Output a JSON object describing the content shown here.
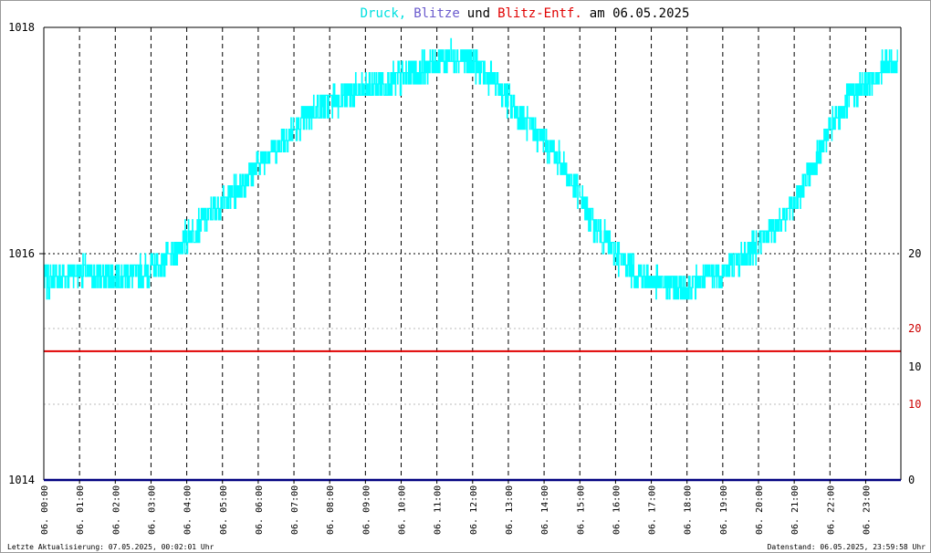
{
  "chart_data": {
    "type": "line",
    "title": {
      "druck": "Druck",
      "comma": ",",
      "blitze": "Blitze",
      "und": "und",
      "entf": "Blitz-Entf.",
      "am": "am 06.05.2025"
    },
    "colors": {
      "druck": "#00ffff",
      "blitze": "#6a5acd",
      "entf": "#e00000",
      "text": "#000000",
      "grid": "#000000",
      "axis_blue": "#000080",
      "red_axis_label": "#cc0000"
    },
    "left_axis": {
      "min": 1014,
      "max": 1018,
      "ticks": [
        "1018",
        "1016",
        "1014"
      ]
    },
    "right_axis": {
      "black_ticks": [
        {
          "label": "20",
          "value": 20
        },
        {
          "label": "10",
          "value": 10
        },
        {
          "label": "0",
          "value": 0
        }
      ],
      "red_ticks": [
        {
          "label": "20",
          "value": 20
        },
        {
          "label": "10",
          "value": 10
        }
      ]
    },
    "x_axis": {
      "start": "06.05.2025 00:00",
      "end": "06.05.2025 23:59",
      "tick_labels": [
        "06. 00:00",
        "06. 01:00",
        "06. 02:00",
        "06. 03:00",
        "06. 04:00",
        "06. 05:00",
        "06. 06:00",
        "06. 07:00",
        "06. 08:00",
        "06. 09:00",
        "06. 10:00",
        "06. 11:00",
        "06. 12:00",
        "06. 13:00",
        "06. 14:00",
        "06. 15:00",
        "06. 16:00",
        "06. 17:00",
        "06. 18:00",
        "06. 19:00",
        "06. 20:00",
        "06. 21:00",
        "06. 22:00",
        "06. 23:00"
      ]
    },
    "series": [
      {
        "name": "Druck",
        "x_hours": [
          0,
          0.5,
          1,
          1.5,
          2,
          2.5,
          3,
          3.5,
          4,
          4.5,
          5,
          5.5,
          6,
          6.5,
          7,
          7.5,
          8,
          8.5,
          9,
          9.5,
          10,
          10.5,
          11,
          11.5,
          12,
          12.5,
          13,
          13.5,
          14,
          14.5,
          15,
          15.5,
          16,
          16.5,
          17,
          17.5,
          18,
          18.5,
          19,
          19.5,
          20,
          20.5,
          21,
          21.5,
          22,
          22.5,
          23,
          23.5,
          23.9
        ],
        "values": [
          1015.75,
          1015.8,
          1015.85,
          1015.8,
          1015.8,
          1015.82,
          1015.85,
          1015.95,
          1016.15,
          1016.3,
          1016.45,
          1016.6,
          1016.8,
          1016.95,
          1017.1,
          1017.25,
          1017.35,
          1017.4,
          1017.45,
          1017.5,
          1017.55,
          1017.62,
          1017.7,
          1017.75,
          1017.7,
          1017.55,
          1017.35,
          1017.15,
          1017.0,
          1016.8,
          1016.5,
          1016.2,
          1016.0,
          1015.85,
          1015.75,
          1015.72,
          1015.7,
          1015.78,
          1015.85,
          1015.95,
          1016.1,
          1016.25,
          1016.45,
          1016.75,
          1017.1,
          1017.35,
          1017.5,
          1017.65,
          1017.7
        ],
        "noise_amplitude": 0.13
      },
      {
        "name": "Blitz-Entf.",
        "constant": 17.0
      },
      {
        "name": "Blitze",
        "constant": 0
      }
    ],
    "grid": true,
    "footer_left": "Letzte Aktualisierung: 07.05.2025, 00:02:01 Uhr",
    "footer_right": "Datenstand: 06.05.2025, 23:59:58 Uhr"
  }
}
